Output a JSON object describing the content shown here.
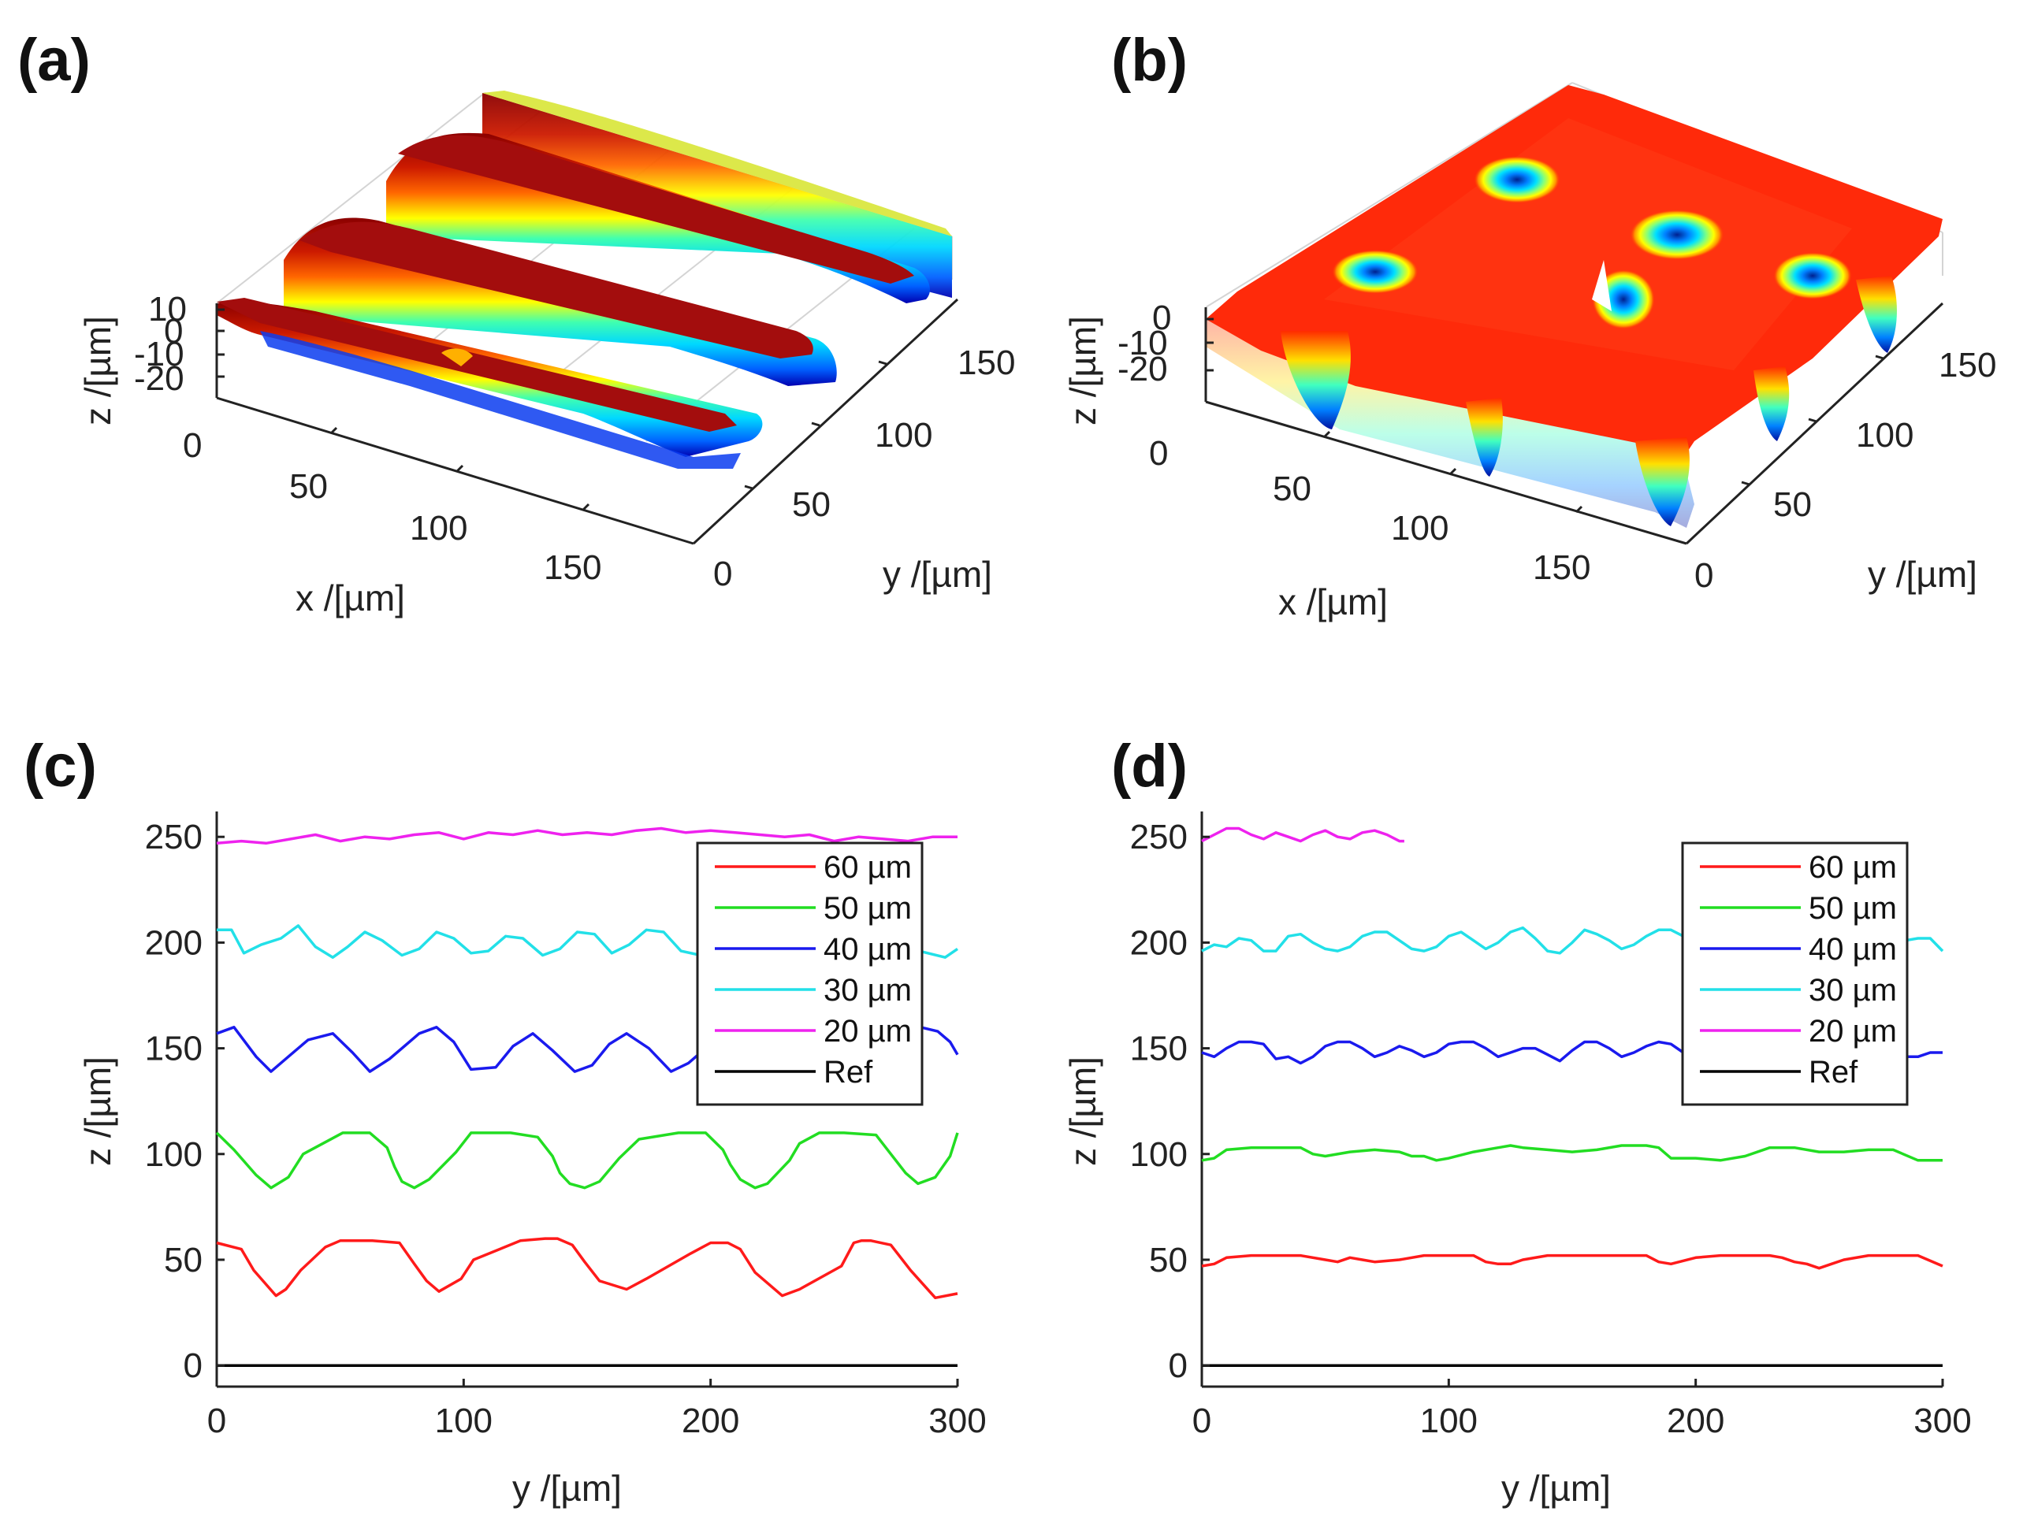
{
  "chart_data": [
    {
      "panel": "(a)",
      "type": "surface",
      "xlabel": "x /[µm]",
      "ylabel": "y /[µm]",
      "zlabel": "z /[µm]",
      "x_ticks": [
        "0",
        "50",
        "100",
        "150"
      ],
      "y_ticks": [
        "0",
        "50",
        "100",
        "150"
      ],
      "z_ticks": [
        "10",
        "0",
        "-10",
        "-20"
      ],
      "xlim": [
        0,
        200
      ],
      "ylim": [
        0,
        200
      ],
      "zlim": [
        -25,
        12
      ],
      "colormap": "jet",
      "grid": true,
      "ridges_along_y": 4
    },
    {
      "panel": "(b)",
      "type": "surface",
      "xlabel": "x /[µm]",
      "ylabel": "y /[µm]",
      "zlabel": "z /[µm]",
      "x_ticks": [
        "0",
        "50",
        "100",
        "150"
      ],
      "y_ticks": [
        "0",
        "50",
        "100",
        "150"
      ],
      "z_ticks": [
        "0",
        "-10",
        "-20"
      ],
      "xlim": [
        0,
        200
      ],
      "ylim": [
        0,
        200
      ],
      "zlim": [
        -25,
        3
      ],
      "colormap": "jet",
      "grid": true,
      "pits": 9
    },
    {
      "panel": "(c)",
      "type": "line",
      "xlabel": "y /[µm]",
      "ylabel": "z /[µm]",
      "x_ticks": [
        "0",
        "100",
        "200",
        "300"
      ],
      "y_ticks": [
        "0",
        "50",
        "100",
        "150",
        "200",
        "250"
      ],
      "xlim": [
        0,
        300
      ],
      "ylim": [
        -10,
        262
      ],
      "legend_position": "top-right",
      "series": [
        {
          "name": "60 µm",
          "color": "#ff1a1a",
          "x": [
            0,
            10,
            15,
            24,
            28,
            34,
            44,
            50,
            63,
            74,
            80,
            85,
            90,
            99,
            104,
            123,
            133,
            138,
            144,
            149,
            155,
            166,
            174,
            192,
            200,
            207,
            212,
            218,
            229,
            236,
            253,
            258,
            261,
            265,
            273,
            281,
            291,
            300
          ],
          "y": [
            58,
            55,
            45,
            33,
            36,
            45,
            56,
            59,
            59,
            58,
            48,
            40,
            35,
            41,
            50,
            59,
            60,
            60,
            57,
            49,
            40,
            36,
            41,
            53,
            58,
            58,
            55,
            44,
            33,
            36,
            47,
            58,
            59,
            59,
            57,
            45,
            32,
            34
          ]
        },
        {
          "name": "50 µm",
          "color": "#22dd22",
          "x": [
            0,
            7,
            16,
            22,
            29,
            35,
            51,
            62,
            69,
            72,
            75,
            80,
            86,
            97,
            103,
            119,
            130,
            136,
            139,
            143,
            149,
            155,
            163,
            171,
            187,
            198,
            205,
            208,
            212,
            218,
            223,
            232,
            236,
            244,
            254,
            267,
            273,
            279,
            284,
            291,
            297,
            300
          ],
          "y": [
            110,
            102,
            90,
            84,
            89,
            100,
            110,
            110,
            103,
            94,
            87,
            84,
            88,
            101,
            110,
            110,
            108,
            99,
            91,
            86,
            84,
            87,
            98,
            107,
            110,
            110,
            102,
            95,
            88,
            84,
            86,
            97,
            105,
            110,
            110,
            109,
            100,
            91,
            86,
            89,
            99,
            110
          ]
        },
        {
          "name": "40 µm",
          "color": "#1a1aee",
          "x": [
            0,
            7,
            16,
            22,
            30,
            37,
            47,
            55,
            62,
            70,
            82,
            89,
            96,
            103,
            113,
            120,
            128,
            136,
            145,
            152,
            159,
            166,
            175,
            184,
            191,
            198,
            204,
            212,
            218,
            226,
            234,
            240,
            246,
            260,
            269,
            276,
            285,
            292,
            297,
            300
          ],
          "y": [
            157,
            160,
            146,
            139,
            147,
            154,
            157,
            148,
            139,
            145,
            157,
            160,
            153,
            140,
            141,
            151,
            157,
            149,
            139,
            142,
            152,
            157,
            150,
            139,
            143,
            150,
            157,
            153,
            140,
            141,
            153,
            157,
            148,
            139,
            146,
            157,
            160,
            158,
            153,
            147
          ]
        },
        {
          "name": "30 µm",
          "color": "#22e0e8",
          "x": [
            0,
            6,
            11,
            18,
            26,
            33,
            40,
            47,
            53,
            60,
            67,
            75,
            82,
            89,
            96,
            103,
            110,
            117,
            124,
            132,
            139,
            146,
            153,
            160,
            167,
            174,
            181,
            188,
            196,
            203,
            210,
            217,
            225,
            232,
            239,
            246,
            253,
            260,
            267,
            274,
            281,
            288,
            295,
            300
          ],
          "y": [
            206,
            206,
            195,
            199,
            202,
            208,
            198,
            193,
            198,
            205,
            201,
            194,
            197,
            205,
            202,
            195,
            196,
            203,
            202,
            194,
            197,
            205,
            204,
            195,
            199,
            206,
            205,
            196,
            194,
            203,
            205,
            198,
            194,
            200,
            206,
            201,
            195,
            199,
            206,
            204,
            197,
            195,
            193,
            197
          ]
        },
        {
          "name": "20 µm",
          "color": "#ee22ee",
          "x": [
            0,
            10,
            20,
            30,
            40,
            50,
            60,
            70,
            80,
            90,
            100,
            110,
            120,
            130,
            140,
            150,
            160,
            170,
            180,
            190,
            200,
            210,
            220,
            230,
            240,
            250,
            260,
            270,
            280,
            290,
            300
          ],
          "y": [
            247,
            248,
            247,
            249,
            251,
            248,
            250,
            249,
            251,
            252,
            249,
            252,
            251,
            253,
            251,
            252,
            251,
            253,
            254,
            252,
            253,
            252,
            251,
            250,
            251,
            248,
            250,
            249,
            248,
            250,
            250
          ]
        },
        {
          "name": "Ref",
          "color": "#000000",
          "x": [
            0,
            300
          ],
          "y": [
            0,
            0
          ]
        }
      ]
    },
    {
      "panel": "(d)",
      "type": "line",
      "xlabel": "y /[µm]",
      "ylabel": "z /[µm]",
      "x_ticks": [
        "0",
        "100",
        "200",
        "300"
      ],
      "y_ticks": [
        "0",
        "50",
        "100",
        "150",
        "200",
        "250"
      ],
      "xlim": [
        0,
        300
      ],
      "ylim": [
        -10,
        262
      ],
      "legend_position": "top-right",
      "series": [
        {
          "name": "60 µm",
          "color": "#ff1a1a",
          "x": [
            0,
            5,
            10,
            20,
            30,
            40,
            50,
            55,
            60,
            65,
            70,
            80,
            90,
            100,
            110,
            115,
            120,
            125,
            130,
            140,
            150,
            160,
            170,
            180,
            185,
            190,
            200,
            210,
            220,
            230,
            235,
            240,
            245,
            250,
            255,
            260,
            270,
            280,
            290,
            300
          ],
          "y": [
            47,
            48,
            51,
            52,
            52,
            52,
            50,
            49,
            51,
            50,
            49,
            50,
            52,
            52,
            52,
            49,
            48,
            48,
            50,
            52,
            52,
            52,
            52,
            52,
            49,
            48,
            51,
            52,
            52,
            52,
            51,
            49,
            48,
            46,
            48,
            50,
            52,
            52,
            52,
            47
          ]
        },
        {
          "name": "50 µm",
          "color": "#22dd22",
          "x": [
            0,
            5,
            10,
            20,
            30,
            40,
            45,
            50,
            60,
            70,
            80,
            85,
            90,
            95,
            100,
            110,
            120,
            125,
            130,
            140,
            150,
            160,
            170,
            180,
            185,
            190,
            200,
            210,
            220,
            230,
            240,
            250,
            260,
            270,
            280,
            290,
            300
          ],
          "y": [
            97,
            98,
            102,
            103,
            103,
            103,
            100,
            99,
            101,
            102,
            101,
            99,
            99,
            97,
            98,
            101,
            103,
            104,
            103,
            102,
            101,
            102,
            104,
            104,
            103,
            98,
            98,
            97,
            99,
            103,
            103,
            101,
            101,
            102,
            102,
            97,
            97
          ]
        },
        {
          "name": "40 µm",
          "color": "#1a1aee",
          "x": [
            0,
            5,
            10,
            15,
            20,
            25,
            30,
            35,
            40,
            45,
            50,
            55,
            60,
            65,
            70,
            75,
            80,
            85,
            90,
            95,
            100,
            105,
            110,
            115,
            120,
            125,
            130,
            135,
            140,
            145,
            150,
            155,
            160,
            165,
            170,
            175,
            180,
            185,
            190,
            195,
            200,
            205,
            210,
            215,
            220,
            225,
            230,
            235,
            240,
            245,
            250,
            255,
            260,
            265,
            270,
            275,
            280,
            285,
            290,
            295,
            300
          ],
          "y": [
            148,
            146,
            150,
            153,
            153,
            152,
            145,
            146,
            143,
            146,
            151,
            153,
            153,
            150,
            146,
            148,
            151,
            149,
            146,
            148,
            152,
            153,
            153,
            150,
            146,
            148,
            150,
            150,
            147,
            144,
            149,
            153,
            153,
            150,
            146,
            148,
            151,
            153,
            152,
            148,
            146,
            148,
            151,
            149,
            146,
            147,
            145,
            148,
            152,
            153,
            151,
            148,
            147,
            149,
            152,
            153,
            150,
            146,
            146,
            148,
            148
          ]
        },
        {
          "name": "30 µm",
          "color": "#22e0e8",
          "x": [
            0,
            5,
            10,
            15,
            20,
            25,
            30,
            35,
            40,
            45,
            50,
            55,
            60,
            65,
            70,
            75,
            80,
            85,
            90,
            95,
            100,
            105,
            110,
            115,
            120,
            125,
            130,
            135,
            140,
            145,
            150,
            155,
            160,
            165,
            170,
            175,
            180,
            185,
            190,
            195,
            200,
            205,
            210,
            215,
            220,
            225,
            230,
            235,
            240,
            245,
            250,
            255,
            260,
            265,
            270,
            275,
            280,
            285,
            290,
            295,
            300
          ],
          "y": [
            196,
            199,
            198,
            202,
            201,
            196,
            196,
            203,
            204,
            200,
            197,
            196,
            198,
            203,
            205,
            205,
            201,
            197,
            196,
            198,
            203,
            205,
            201,
            197,
            200,
            205,
            207,
            202,
            196,
            195,
            200,
            206,
            204,
            201,
            197,
            199,
            203,
            206,
            206,
            203,
            198,
            195,
            196,
            196,
            196,
            197,
            199,
            197,
            198,
            198,
            202,
            204,
            203,
            199,
            198,
            200,
            200,
            201,
            202,
            202,
            196
          ]
        },
        {
          "name": "20 µm",
          "color": "#ee22ee",
          "x": [
            0,
            5,
            10,
            15,
            20,
            25,
            30,
            35,
            40,
            45,
            50,
            55,
            60,
            65,
            70,
            75,
            80,
            82
          ],
          "y": [
            248,
            251,
            254,
            254,
            251,
            249,
            252,
            250,
            248,
            251,
            253,
            250,
            249,
            252,
            253,
            251,
            248,
            248
          ]
        },
        {
          "name": "Ref",
          "color": "#000000",
          "x": [
            0,
            300
          ],
          "y": [
            0,
            0
          ]
        }
      ]
    }
  ]
}
